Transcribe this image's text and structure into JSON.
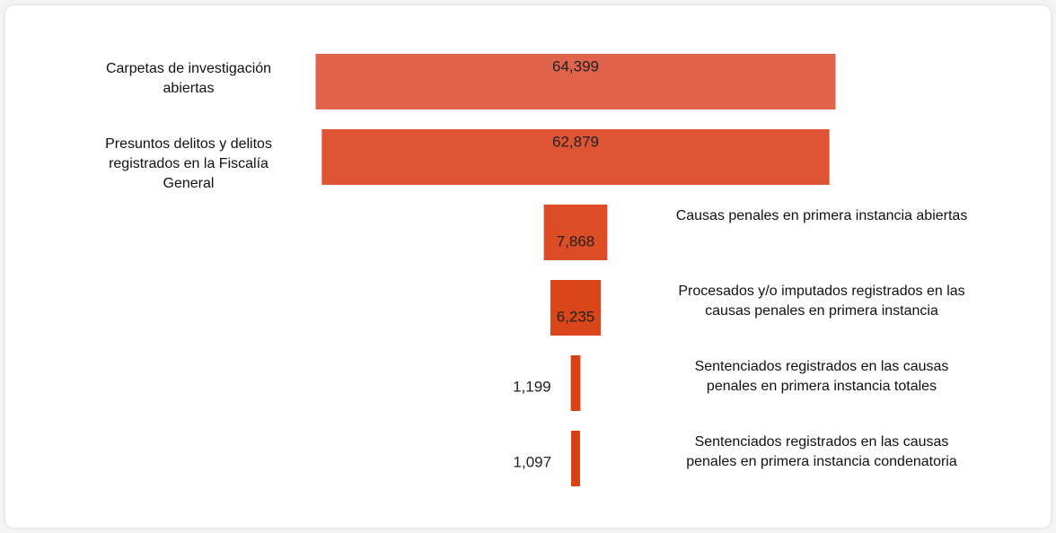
{
  "chart_data": {
    "type": "funnel",
    "categories": [
      "Carpetas de investigación abiertas",
      "Presuntos delitos y delitos registrados en la Fiscalía General",
      "Causas penales en primera instancia abiertas",
      "Procesados y/o imputados registrados en las causas penales en primera instancia",
      "Sentenciados registrados en las causas penales en primera instancia totales",
      "Sentenciados registrados en las causas penales en primera instancia condenatoria"
    ],
    "values": [
      64399,
      62879,
      7868,
      6235,
      1199,
      1097
    ],
    "value_labels": [
      "64,399",
      "62,879",
      "7,868",
      "6,235",
      "1,199",
      "1,097"
    ],
    "colors": [
      "#e0644b",
      "#de5434",
      "#dc4c25",
      "#da4619",
      "#d94314",
      "#d84012"
    ]
  }
}
